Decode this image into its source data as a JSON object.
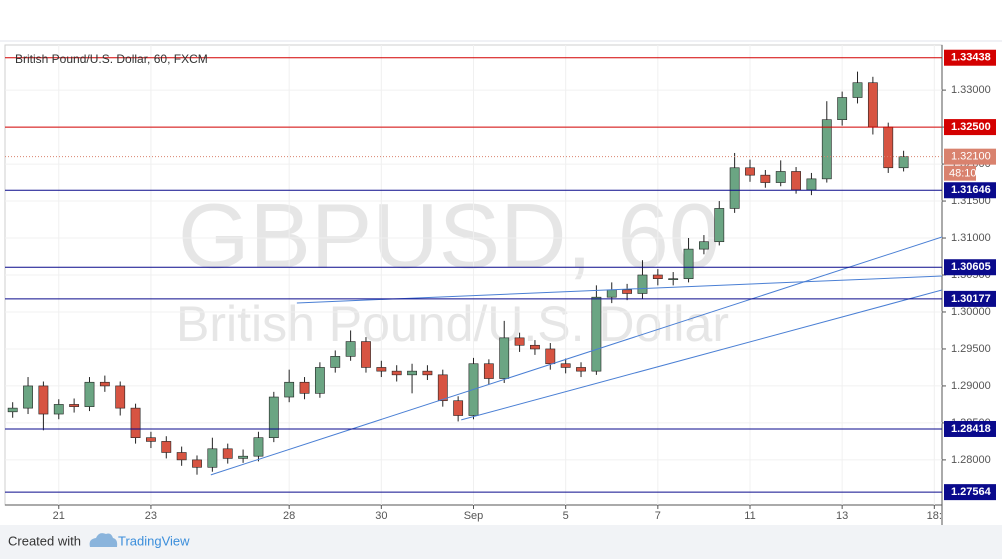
{
  "chart_data": {
    "type": "candlestick",
    "title": "British Pound/U.S. Dollar, 60, FXCM",
    "watermark": {
      "symbol": "GBPUSD, 60",
      "description": "British Pound/U.S. Dollar"
    },
    "categories": [
      null,
      null,
      null,
      "21",
      null,
      null,
      null,
      null,
      null,
      "23",
      null,
      null,
      null,
      null,
      null,
      null,
      null,
      null,
      "28",
      null,
      null,
      null,
      null,
      null,
      "30",
      null,
      null,
      null,
      null,
      null,
      "Sep",
      null,
      null,
      null,
      null,
      null,
      "5",
      null,
      null,
      null,
      null,
      null,
      "7",
      null,
      null,
      null,
      null,
      null,
      "11",
      null,
      null,
      null,
      null,
      null,
      "13",
      null,
      null,
      null,
      null,
      null,
      "18:"
    ],
    "open": [
      1.2865,
      1.287,
      1.29,
      1.2862,
      1.2875,
      1.2872,
      1.2905,
      1.29,
      1.287,
      1.283,
      1.2825,
      1.281,
      1.28,
      1.279,
      1.2815,
      1.2802,
      1.2805,
      1.283,
      1.2885,
      1.2905,
      1.289,
      1.2925,
      1.294,
      1.296,
      1.2925,
      1.292,
      1.2915,
      1.292,
      1.2915,
      1.288,
      1.286,
      1.293,
      1.291,
      1.2965,
      1.2955,
      1.295,
      1.293,
      1.2925,
      1.292,
      1.302,
      1.303,
      1.3025,
      1.305,
      1.3045,
      1.3045,
      1.3085,
      1.3095,
      1.314,
      1.3195,
      1.3185,
      1.3175,
      1.319,
      1.3165,
      1.318,
      1.326,
      1.329,
      1.331,
      1.325,
      1.3195,
      null,
      null
    ],
    "high": [
      1.2878,
      1.2912,
      1.2906,
      1.2882,
      1.2883,
      1.2912,
      1.2914,
      1.2906,
      1.2876,
      1.2838,
      1.2832,
      1.2818,
      1.2806,
      1.283,
      1.2822,
      1.2814,
      1.2838,
      1.2892,
      1.2922,
      1.2912,
      1.2932,
      1.2948,
      1.2975,
      1.2966,
      1.2934,
      1.2928,
      1.293,
      1.2928,
      1.2922,
      1.2886,
      1.2938,
      1.2936,
      1.2988,
      1.2972,
      1.2962,
      1.2958,
      1.2937,
      1.2932,
      1.3036,
      1.304,
      1.3038,
      1.307,
      1.3058,
      1.3054,
      1.31,
      1.3104,
      1.315,
      1.3215,
      1.3206,
      1.3192,
      1.3205,
      1.3196,
      1.3188,
      1.3285,
      1.3298,
      1.3325,
      1.3318,
      1.3256,
      1.3218,
      null,
      null
    ],
    "low": [
      1.2857,
      1.2862,
      1.284,
      1.2855,
      1.2864,
      1.2866,
      1.2892,
      1.286,
      1.2822,
      1.2816,
      1.2802,
      1.2792,
      1.278,
      1.2784,
      1.2795,
      1.2796,
      1.2798,
      1.2824,
      1.2878,
      1.2882,
      1.2884,
      1.2918,
      1.2934,
      1.2918,
      1.2912,
      1.2906,
      1.289,
      1.2908,
      1.2872,
      1.2852,
      1.2855,
      1.2902,
      1.2904,
      1.2946,
      1.2942,
      1.2922,
      1.2917,
      1.2912,
      1.2915,
      1.3012,
      1.3016,
      1.3018,
      1.3036,
      1.3036,
      1.304,
      1.3078,
      1.309,
      1.3134,
      1.3176,
      1.3168,
      1.317,
      1.316,
      1.3158,
      1.3175,
      1.3252,
      1.3282,
      1.324,
      1.3188,
      1.319,
      null,
      null
    ],
    "close": [
      1.287,
      1.29,
      1.2862,
      1.2875,
      1.2872,
      1.2905,
      1.29,
      1.287,
      1.283,
      1.2825,
      1.281,
      1.28,
      1.279,
      1.2815,
      1.2802,
      1.2805,
      1.283,
      1.2885,
      1.2905,
      1.289,
      1.2925,
      1.294,
      1.296,
      1.2925,
      1.292,
      1.2915,
      1.292,
      1.2915,
      1.288,
      1.286,
      1.293,
      1.291,
      1.2965,
      1.2955,
      1.295,
      1.293,
      1.2925,
      1.292,
      1.302,
      1.303,
      1.3025,
      1.305,
      1.3045,
      1.3045,
      1.3085,
      1.3095,
      1.314,
      1.3195,
      1.3185,
      1.3175,
      1.319,
      1.3165,
      1.318,
      1.326,
      1.329,
      1.331,
      1.325,
      1.3195,
      1.321,
      null,
      null
    ],
    "up_color": "#6ba583",
    "down_color": "#d75442",
    "ylim": [
      1.2739,
      1.3361
    ],
    "yticks": [
      {
        "value": 1.28,
        "label": "1.28000"
      },
      {
        "value": 1.285,
        "label": "1.28500"
      },
      {
        "value": 1.29,
        "label": "1.29000"
      },
      {
        "value": 1.295,
        "label": "1.29500"
      },
      {
        "value": 1.3,
        "label": "1.30000"
      },
      {
        "value": 1.305,
        "label": "1.30500"
      },
      {
        "value": 1.31,
        "label": "1.31000"
      },
      {
        "value": 1.315,
        "label": "1.31500"
      },
      {
        "value": 1.32,
        "label": "1.32000"
      },
      {
        "value": 1.325,
        "label": "1.32500"
      },
      {
        "value": 1.33,
        "label": "1.33000"
      }
    ],
    "grid": true,
    "price_levels": [
      {
        "value": 1.33438,
        "label": "1.33438",
        "color": "#d40000"
      },
      {
        "value": 1.325,
        "label": "1.32500",
        "color": "#d40000"
      },
      {
        "value": 1.31646,
        "label": "1.31646",
        "color": "#0a0a8c"
      },
      {
        "value": 1.30605,
        "label": "1.30605",
        "color": "#0a0a8c"
      },
      {
        "value": 1.30177,
        "label": "1.30177",
        "color": "#0a0a8c"
      },
      {
        "value": 1.28418,
        "label": "1.28418",
        "color": "#0a0a8c"
      },
      {
        "value": 1.27564,
        "label": "1.27564",
        "color": "#0a0a8c"
      }
    ],
    "current_price": {
      "value": 1.321,
      "label": "1.32100",
      "countdown": "48:10",
      "color": "#d9826e"
    },
    "trend_lines": [
      {
        "from": [
          18.5,
          1.30122
        ],
        "to": [
          60.5,
          1.30486
        ],
        "color": "#4a7fd4"
      },
      {
        "from": [
          12.9,
          1.27797
        ],
        "to": [
          60.5,
          1.31014
        ],
        "color": "#4a7fd4"
      },
      {
        "from": [
          29.2,
          1.28541
        ],
        "to": [
          60.5,
          1.30297
        ],
        "color": "#4a7fd4"
      }
    ]
  },
  "footer": {
    "text": "Created with",
    "brand": "TradingView"
  }
}
